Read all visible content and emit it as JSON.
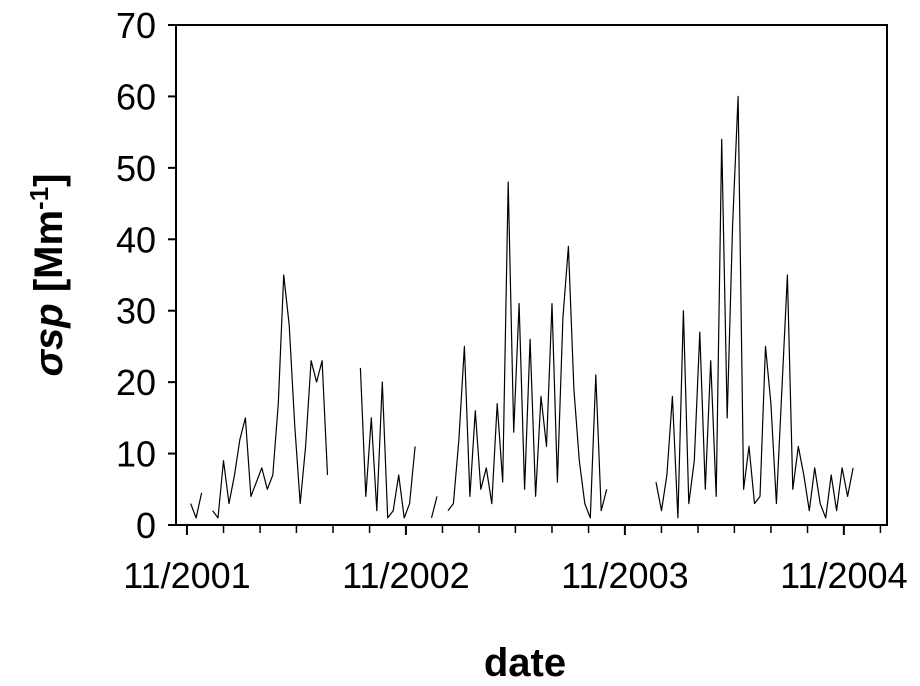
{
  "chart_data": {
    "type": "line",
    "xlabel": "date",
    "ylabel": [
      "σsp",
      " [Mm",
      "-1",
      "]"
    ],
    "x": [
      2001.85,
      2001.875,
      2001.9,
      2001.925,
      2001.95,
      2001.975,
      2002,
      2002.025,
      2002.05,
      2002.075,
      2002.1,
      2002.125,
      2002.15,
      2002.175,
      2002.2,
      2002.225,
      2002.25,
      2002.275,
      2002.3,
      2002.325,
      2002.35,
      2002.375,
      2002.4,
      2002.425,
      2002.45,
      2002.475,
      2002.5,
      2002.525,
      2002.55,
      2002.575,
      2002.6,
      2002.625,
      2002.65,
      2002.675,
      2002.7,
      2002.725,
      2002.75,
      2002.775,
      2002.8,
      2002.825,
      2002.85,
      2002.875,
      2002.9,
      2002.925,
      2002.95,
      2002.975,
      2003,
      2003.025,
      2003.05,
      2003.075,
      2003.1,
      2003.125,
      2003.15,
      2003.175,
      2003.2,
      2003.225,
      2003.25,
      2003.275,
      2003.3,
      2003.325,
      2003.35,
      2003.375,
      2003.4,
      2003.425,
      2003.45,
      2003.475,
      2003.5,
      2003.525,
      2003.55,
      2003.575,
      2003.6,
      2003.625,
      2003.65,
      2003.675,
      2003.7,
      2003.725,
      2003.75,
      2003.775,
      2003.8,
      2003.825,
      2003.85,
      2003.875,
      2003.9,
      2003.925,
      2003.95,
      2003.975,
      2004,
      2004.025,
      2004.05,
      2004.075,
      2004.1,
      2004.125,
      2004.15,
      2004.175,
      2004.2,
      2004.225,
      2004.25,
      2004.275,
      2004.3,
      2004.325,
      2004.35,
      2004.375,
      2004.4,
      2004.425,
      2004.45,
      2004.475,
      2004.5,
      2004.525,
      2004.55,
      2004.575,
      2004.6,
      2004.625,
      2004.65,
      2004.675,
      2004.7,
      2004.725,
      2004.75,
      2004.775,
      2004.8,
      2004.825,
      2004.85,
      2004.875
    ],
    "series": [
      {
        "color": "#000000",
        "values": [
          3,
          1,
          4.5,
          null,
          2,
          1,
          9,
          3,
          7,
          12,
          15,
          4,
          6,
          8,
          5,
          7,
          17,
          35,
          28,
          14,
          3,
          11,
          23,
          20,
          23,
          7,
          null,
          null,
          null,
          null,
          null,
          22,
          4,
          15,
          2,
          20,
          1,
          2,
          7,
          1,
          3,
          11,
          null,
          null,
          1,
          4,
          null,
          2,
          3,
          12,
          25,
          4,
          16,
          5,
          8,
          3,
          17,
          6,
          48,
          13,
          31,
          5,
          26,
          4,
          18,
          11,
          31,
          6,
          29,
          39,
          19,
          9,
          3,
          1,
          21,
          2,
          5,
          null,
          null,
          null,
          null,
          null,
          null,
          null,
          null,
          6,
          2,
          7,
          18,
          1,
          30,
          3,
          9,
          27,
          5,
          23,
          4,
          54,
          15,
          42,
          60,
          5,
          11,
          3,
          4,
          25,
          17,
          3,
          19,
          35,
          5,
          11,
          7,
          2,
          8,
          3,
          1,
          7,
          2,
          8,
          4,
          8
        ]
      }
    ],
    "xlim": [
      2001.783,
      2005.03
    ],
    "xticks": [
      {
        "value": 2001.833,
        "label": "11/2001"
      },
      {
        "value": 2002.833,
        "label": "11/2002"
      },
      {
        "value": 2003.833,
        "label": "11/2003"
      },
      {
        "value": 2004.833,
        "label": "11/2004"
      }
    ],
    "xminor_ticks": [
      2002,
      2002.167,
      2002.333,
      2002.5,
      2002.667,
      2003,
      2003.167,
      2003.333,
      2003.5,
      2003.667,
      2004,
      2004.167,
      2004.333,
      2004.5,
      2004.667,
      2005
    ],
    "ylim": [
      0,
      70
    ],
    "yticks": [
      0,
      10,
      20,
      30,
      40,
      50,
      60,
      70
    ]
  }
}
